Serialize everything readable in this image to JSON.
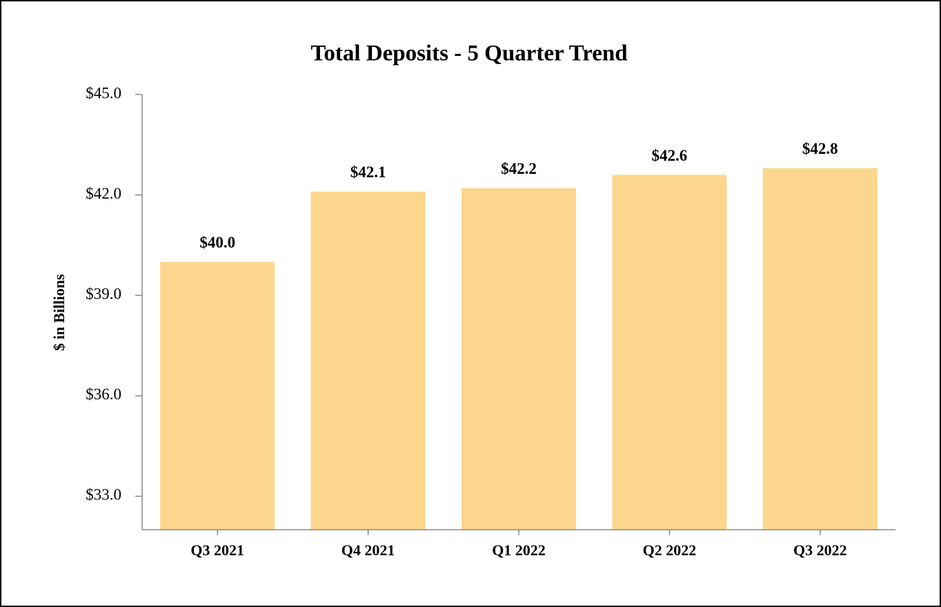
{
  "chart_data": {
    "type": "bar",
    "title": "Total Deposits - 5 Quarter Trend",
    "y_label": "$ in Billions",
    "categories": [
      "Q3 2021",
      "Q4 2021",
      "Q1 2022",
      "Q2 2022",
      "Q3 2022"
    ],
    "values": [
      40.0,
      42.1,
      42.2,
      42.6,
      42.8
    ],
    "value_labels": [
      "$40.0",
      "$42.1",
      "$42.2",
      "$42.6",
      "$42.8"
    ],
    "color": "#fbd68c",
    "ylim": [
      32,
      45
    ],
    "yticks": [
      {
        "value": 33,
        "label": "$33.0"
      },
      {
        "value": 36,
        "label": "$36.0"
      },
      {
        "value": 39,
        "label": "$39.0"
      },
      {
        "value": 42,
        "label": "$42.0"
      },
      {
        "value": 45,
        "label": "$45.0"
      }
    ],
    "grid": false
  }
}
